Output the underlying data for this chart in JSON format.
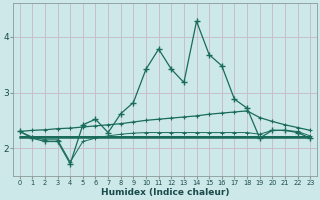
{
  "xlabel": "Humidex (Indice chaleur)",
  "bg_color": "#cce8e8",
  "line_color": "#1a6b5a",
  "grid_color": "#c8b8c8",
  "x": [
    0,
    1,
    2,
    3,
    4,
    5,
    6,
    7,
    8,
    9,
    10,
    11,
    12,
    13,
    14,
    15,
    16,
    17,
    18,
    19,
    20,
    21,
    22,
    23
  ],
  "line_main": [
    2.3,
    2.18,
    2.12,
    2.12,
    1.72,
    2.42,
    2.52,
    2.28,
    2.62,
    2.82,
    3.42,
    3.78,
    3.42,
    3.18,
    4.28,
    3.68,
    3.48,
    2.88,
    2.72,
    2.18,
    2.32,
    2.32,
    2.28,
    2.18
  ],
  "line_trend_up": [
    2.3,
    2.32,
    2.33,
    2.35,
    2.36,
    2.38,
    2.4,
    2.42,
    2.44,
    2.47,
    2.5,
    2.52,
    2.54,
    2.56,
    2.58,
    2.61,
    2.63,
    2.65,
    2.67,
    2.55,
    2.48,
    2.42,
    2.37,
    2.32
  ],
  "line_flat1": [
    2.2,
    2.2,
    2.2,
    2.2,
    2.2,
    2.2,
    2.2,
    2.2,
    2.2,
    2.2,
    2.2,
    2.2,
    2.2,
    2.2,
    2.2,
    2.2,
    2.2,
    2.2,
    2.2,
    2.2,
    2.2,
    2.2,
    2.2,
    2.2
  ],
  "line_flat2": [
    2.22,
    2.22,
    2.22,
    2.22,
    2.22,
    2.22,
    2.22,
    2.22,
    2.22,
    2.22,
    2.22,
    2.22,
    2.22,
    2.22,
    2.22,
    2.22,
    2.22,
    2.22,
    2.22,
    2.22,
    2.22,
    2.22,
    2.22,
    2.22
  ],
  "line_lower": [
    2.3,
    2.2,
    2.15,
    2.15,
    1.75,
    2.12,
    2.18,
    2.22,
    2.25,
    2.27,
    2.28,
    2.28,
    2.28,
    2.28,
    2.28,
    2.28,
    2.28,
    2.28,
    2.28,
    2.25,
    2.32,
    2.32,
    2.3,
    2.22
  ],
  "xlim": [
    -0.5,
    23.5
  ],
  "ylim": [
    1.5,
    4.6
  ],
  "yticks": [
    2,
    3,
    4
  ],
  "xticks": [
    0,
    1,
    2,
    3,
    4,
    5,
    6,
    7,
    8,
    9,
    10,
    11,
    12,
    13,
    14,
    15,
    16,
    17,
    18,
    19,
    20,
    21,
    22,
    23
  ]
}
